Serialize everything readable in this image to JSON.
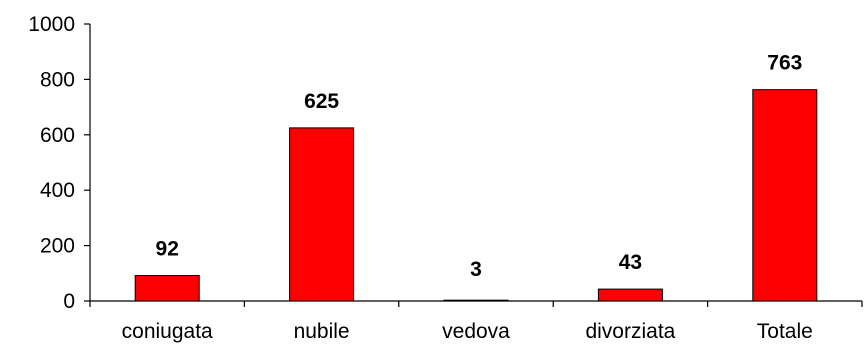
{
  "chart_data": {
    "type": "bar",
    "categories": [
      "coniugata",
      "nubile",
      "vedova",
      "divorziata",
      "Totale"
    ],
    "values": [
      92,
      625,
      3,
      43,
      763
    ],
    "data_labels": [
      "92",
      "625",
      "3",
      "43",
      "763"
    ],
    "ylim": [
      0,
      1000
    ],
    "yticks": [
      "0",
      "200",
      "400",
      "600",
      "800",
      "1000"
    ],
    "grid": false,
    "legend": "none",
    "bar_color": "#ff0000",
    "bar_edge_color": "#000000"
  }
}
